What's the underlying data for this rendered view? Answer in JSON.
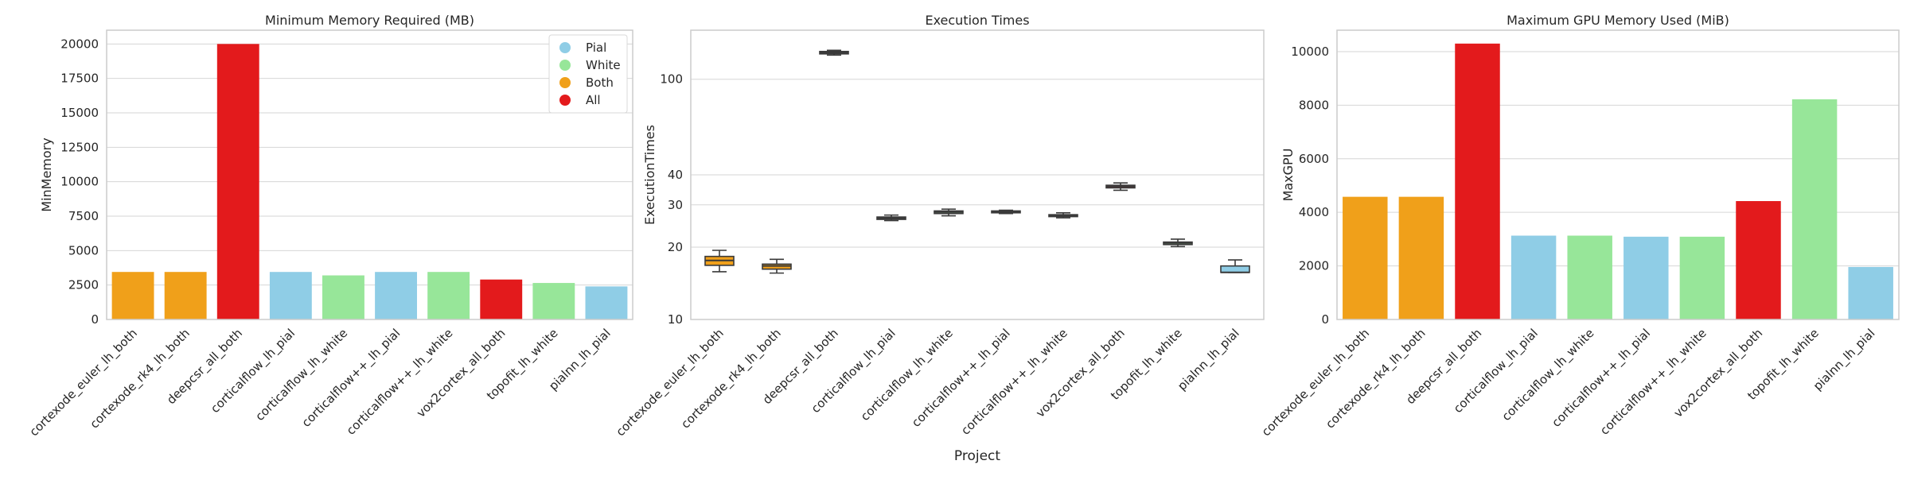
{
  "colors": {
    "pial": "#8fcde6",
    "white": "#97e699",
    "both": "#f0a01a",
    "all": "#e31a1c",
    "grid": "#d6d6d6",
    "frame": "#cccccc",
    "text": "#262626",
    "box_edge": "#3a3a3a"
  },
  "legend_labels": {
    "pial": "Pial",
    "white": "White",
    "both": "Both",
    "all": "All"
  },
  "shared_xlabel": "Project",
  "chart_data": [
    {
      "type": "bar",
      "title": "Minimum Memory Required (MB)",
      "xlabel": "",
      "ylabel": "MinMemory",
      "ylim": [
        0,
        21000
      ],
      "yticks": [
        0,
        2500,
        5000,
        7500,
        10000,
        12500,
        15000,
        17500,
        20000
      ],
      "grid": "horizontal",
      "legend_placement": "top-right",
      "categories": [
        "cortexode_euler_lh_both",
        "cortexode_rk4_lh_both",
        "deepcsr_all_both",
        "corticalflow_lh_pial",
        "corticalflow_lh_white",
        "corticalflow++_lh_pial",
        "corticalflow++_lh_white",
        "vox2cortex_all_both",
        "topofit_lh_white",
        "pialnn_lh_pial"
      ],
      "groups": [
        "both",
        "both",
        "all",
        "pial",
        "white",
        "pial",
        "white",
        "all",
        "white",
        "pial"
      ],
      "values": [
        3450,
        3450,
        20000,
        3450,
        3200,
        3450,
        3450,
        2900,
        2650,
        2400
      ]
    },
    {
      "type": "box",
      "title": "Execution Times",
      "xlabel": "Project",
      "ylabel": "ExecutionTimes",
      "scale": "log",
      "ylim": [
        10,
        160
      ],
      "yticks": [
        10,
        20,
        30,
        40,
        100
      ],
      "grid": "horizontal",
      "categories": [
        "cortexode_euler_lh_both",
        "cortexode_rk4_lh_both",
        "deepcsr_all_both",
        "corticalflow_lh_pial",
        "corticalflow_lh_white",
        "corticalflow++_lh_pial",
        "corticalflow++_lh_white",
        "vox2cortex_all_both",
        "topofit_lh_white",
        "pialnn_lh_pial"
      ],
      "groups": [
        "both",
        "both",
        "all",
        "pial",
        "white",
        "pial",
        "white",
        "all",
        "white",
        "pial"
      ],
      "boxes": [
        {
          "min": 15.8,
          "q1": 16.8,
          "median": 17.6,
          "q3": 18.3,
          "max": 19.4
        },
        {
          "min": 15.6,
          "q1": 16.2,
          "median": 16.7,
          "q3": 17.0,
          "max": 17.8
        },
        {
          "min": 126,
          "q1": 127.5,
          "median": 129,
          "q3": 130.5,
          "max": 132
        },
        {
          "min": 25.8,
          "q1": 26.1,
          "median": 26.4,
          "q3": 26.7,
          "max": 27.2
        },
        {
          "min": 27.0,
          "q1": 27.6,
          "median": 28.0,
          "q3": 28.3,
          "max": 28.8
        },
        {
          "min": 27.6,
          "q1": 27.8,
          "median": 28.1,
          "q3": 28.3,
          "max": 28.5
        },
        {
          "min": 26.5,
          "q1": 26.8,
          "median": 27.1,
          "q3": 27.3,
          "max": 27.8
        },
        {
          "min": 34.5,
          "q1": 35.3,
          "median": 35.8,
          "q3": 36.2,
          "max": 37.0
        },
        {
          "min": 20.1,
          "q1": 20.5,
          "median": 20.8,
          "q3": 21.0,
          "max": 21.6
        },
        {
          "min": 15.7,
          "q1": 15.7,
          "median": 15.7,
          "q3": 16.7,
          "max": 17.7
        }
      ]
    },
    {
      "type": "bar",
      "title": "Maximum GPU Memory Used (MiB)",
      "xlabel": "",
      "ylabel": "MaxGPU",
      "ylim": [
        0,
        10800
      ],
      "yticks": [
        0,
        2000,
        4000,
        6000,
        8000,
        10000
      ],
      "grid": "horizontal",
      "categories": [
        "cortexode_euler_lh_both",
        "cortexode_rk4_lh_both",
        "deepcsr_all_both",
        "corticalflow_lh_pial",
        "corticalflow_lh_white",
        "corticalflow++_lh_pial",
        "corticalflow++_lh_white",
        "vox2cortex_all_both",
        "topofit_lh_white",
        "pialnn_lh_pial"
      ],
      "groups": [
        "both",
        "both",
        "all",
        "pial",
        "white",
        "pial",
        "white",
        "all",
        "white",
        "pial"
      ],
      "values": [
        4580,
        4580,
        10300,
        3130,
        3130,
        3090,
        3090,
        4420,
        8220,
        1960
      ]
    }
  ]
}
